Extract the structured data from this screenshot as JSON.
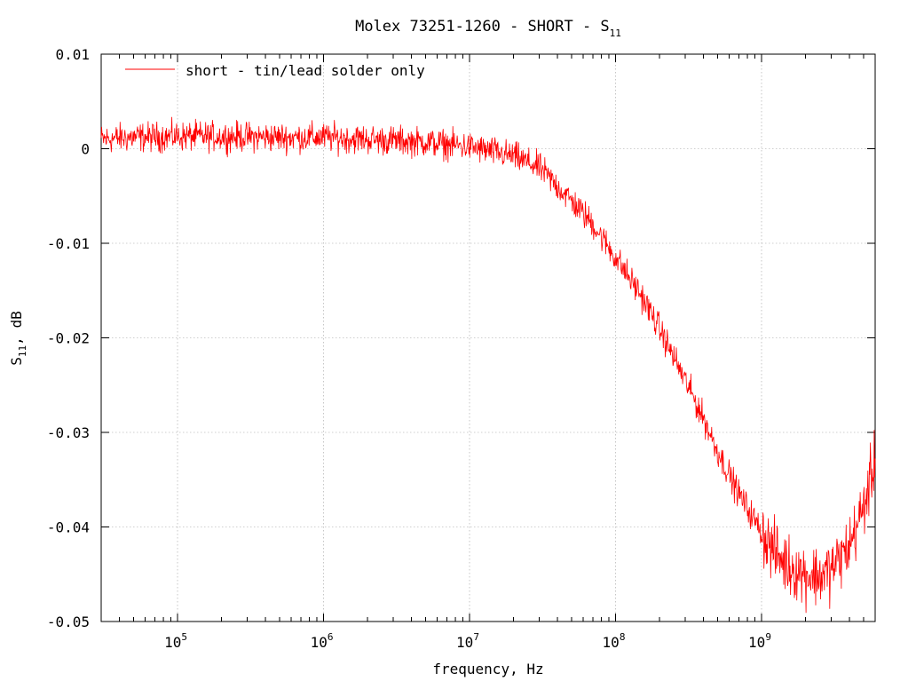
{
  "chart_data": {
    "type": "line",
    "title": "Molex 73251-1260 - SHORT - S11",
    "title_main": "Molex 73251-1260 - SHORT - S",
    "title_sub": "11",
    "xlabel": "frequency, Hz",
    "ylabel_main": "S",
    "ylabel_sub": "11",
    "ylabel_rest": ", dB",
    "x_scale": "log",
    "xlim": [
      30000,
      6000000000
    ],
    "ylim": [
      -0.05,
      0.01
    ],
    "grid": true,
    "legend_position": "top-left",
    "x_ticks": [
      {
        "value": 100000,
        "base": "10",
        "exp": "5"
      },
      {
        "value": 1000000,
        "base": "10",
        "exp": "6"
      },
      {
        "value": 10000000,
        "base": "10",
        "exp": "7"
      },
      {
        "value": 100000000,
        "base": "10",
        "exp": "8"
      },
      {
        "value": 1000000000,
        "base": "10",
        "exp": "9"
      }
    ],
    "y_ticks": [
      {
        "value": 0.01,
        "label": "0.01"
      },
      {
        "value": 0,
        "label": "0"
      },
      {
        "value": -0.01,
        "label": "-0.01"
      },
      {
        "value": -0.02,
        "label": "-0.02"
      },
      {
        "value": -0.03,
        "label": "-0.03"
      },
      {
        "value": -0.04,
        "label": "-0.04"
      },
      {
        "value": -0.05,
        "label": "-0.05"
      }
    ],
    "series": [
      {
        "name": "short - tin/lead solder only",
        "color": "#ff0000",
        "x": [
          30000,
          50000,
          100000,
          200000,
          500000,
          1000000,
          2000000,
          5000000,
          10000000,
          20000000,
          30000000,
          50000000,
          70000000,
          100000000,
          150000000,
          200000000,
          300000000,
          400000000,
          500000000,
          700000000,
          1000000000,
          1200000000,
          1500000000,
          2000000000,
          2500000000,
          3000000000,
          4000000000,
          5000000000,
          6000000000
        ],
        "y": [
          0.001,
          0.0012,
          0.0013,
          0.0013,
          0.0012,
          0.0012,
          0.001,
          0.0007,
          0.0002,
          -0.0008,
          -0.002,
          -0.0055,
          -0.008,
          -0.0115,
          -0.0155,
          -0.019,
          -0.0245,
          -0.0285,
          -0.032,
          -0.0365,
          -0.0405,
          -0.0425,
          -0.044,
          -0.045,
          -0.0452,
          -0.0445,
          -0.042,
          -0.038,
          -0.033
        ]
      }
    ]
  }
}
